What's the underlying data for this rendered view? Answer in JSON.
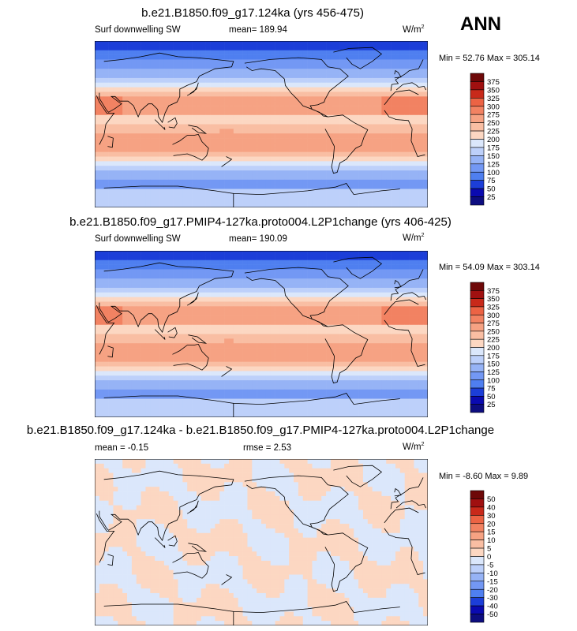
{
  "season": "ANN",
  "colors": {
    "abs_scale": [
      "#0d0d80",
      "#0a0ab0",
      "#1c3ed8",
      "#2d5fe6",
      "#4f7ff0",
      "#7398f4",
      "#96b3f6",
      "#bdd0fa",
      "#dbe7fb",
      "#fdeee2",
      "#fcd7c2",
      "#f9bea3",
      "#f6a283",
      "#f28262",
      "#ec6344",
      "#e0472d",
      "#c8291a",
      "#a01010",
      "#6e0808"
    ],
    "diff_scale": [
      "#0d0d80",
      "#0a0ab0",
      "#1c3ed8",
      "#2d5fe6",
      "#4f7ff0",
      "#7398f4",
      "#96b3f6",
      "#bdd0fa",
      "#dbe7fb",
      "#fdeee2",
      "#fcd7c2",
      "#f9bea3",
      "#f6a283",
      "#f28262",
      "#ec6344",
      "#e0472d",
      "#c8291a",
      "#a01010",
      "#6e0808"
    ]
  },
  "chart_data": [
    {
      "type": "heatmap",
      "title": "b.e21.B1850.f09_g17.124ka (yrs 456-475)",
      "variable": "Surf downwelling SW",
      "mean_text": "mean= 189.94",
      "units_base": "W/m",
      "units_exp": "2",
      "minmax_text": "Min =  52.76 Max = 305.14",
      "min": 52.76,
      "max": 305.14,
      "mean": 189.94,
      "levels": [
        "375",
        "350",
        "325",
        "300",
        "275",
        "250",
        "225",
        "200",
        "175",
        "150",
        "125",
        "100",
        "75",
        "50",
        "25"
      ],
      "field": {
        "equator": 228,
        "pacific_max": 270,
        "subtropics": 250,
        "midlat": 140,
        "polar": 70
      }
    },
    {
      "type": "heatmap",
      "title": "b.e21.B1850.f09_g17.PMIP4-127ka.proto004.L2P1change (yrs 406-425)",
      "variable": "Surf downwelling SW",
      "mean_text": "mean= 190.09",
      "units_base": "W/m",
      "units_exp": "2",
      "minmax_text": "Min =  54.09 Max = 303.14",
      "min": 54.09,
      "max": 303.14,
      "mean": 190.09,
      "levels": [
        "375",
        "350",
        "325",
        "300",
        "275",
        "250",
        "225",
        "200",
        "175",
        "150",
        "125",
        "100",
        "75",
        "50",
        "25"
      ],
      "field": {
        "equator": 230,
        "pacific_max": 268,
        "subtropics": 252,
        "midlat": 140,
        "polar": 72
      }
    },
    {
      "type": "heatmap",
      "title": "b.e21.B1850.f09_g17.124ka - b.e21.B1850.f09_g17.PMIP4-127ka.proto004.L2P1change",
      "mean_text": "mean =  -0.15",
      "rmse_text": "rmse =   2.53",
      "units_base": "W/m",
      "units_exp": "2",
      "minmax_text": "Min =  -8.60 Max =   9.89",
      "min": -8.6,
      "max": 9.89,
      "mean": -0.15,
      "rmse": 2.53,
      "levels": [
        "50",
        "40",
        "30",
        "20",
        "15",
        "10",
        "5",
        "0",
        "-5",
        "-10",
        "-15",
        "-20",
        "-30",
        "-40",
        "-50"
      ]
    }
  ]
}
